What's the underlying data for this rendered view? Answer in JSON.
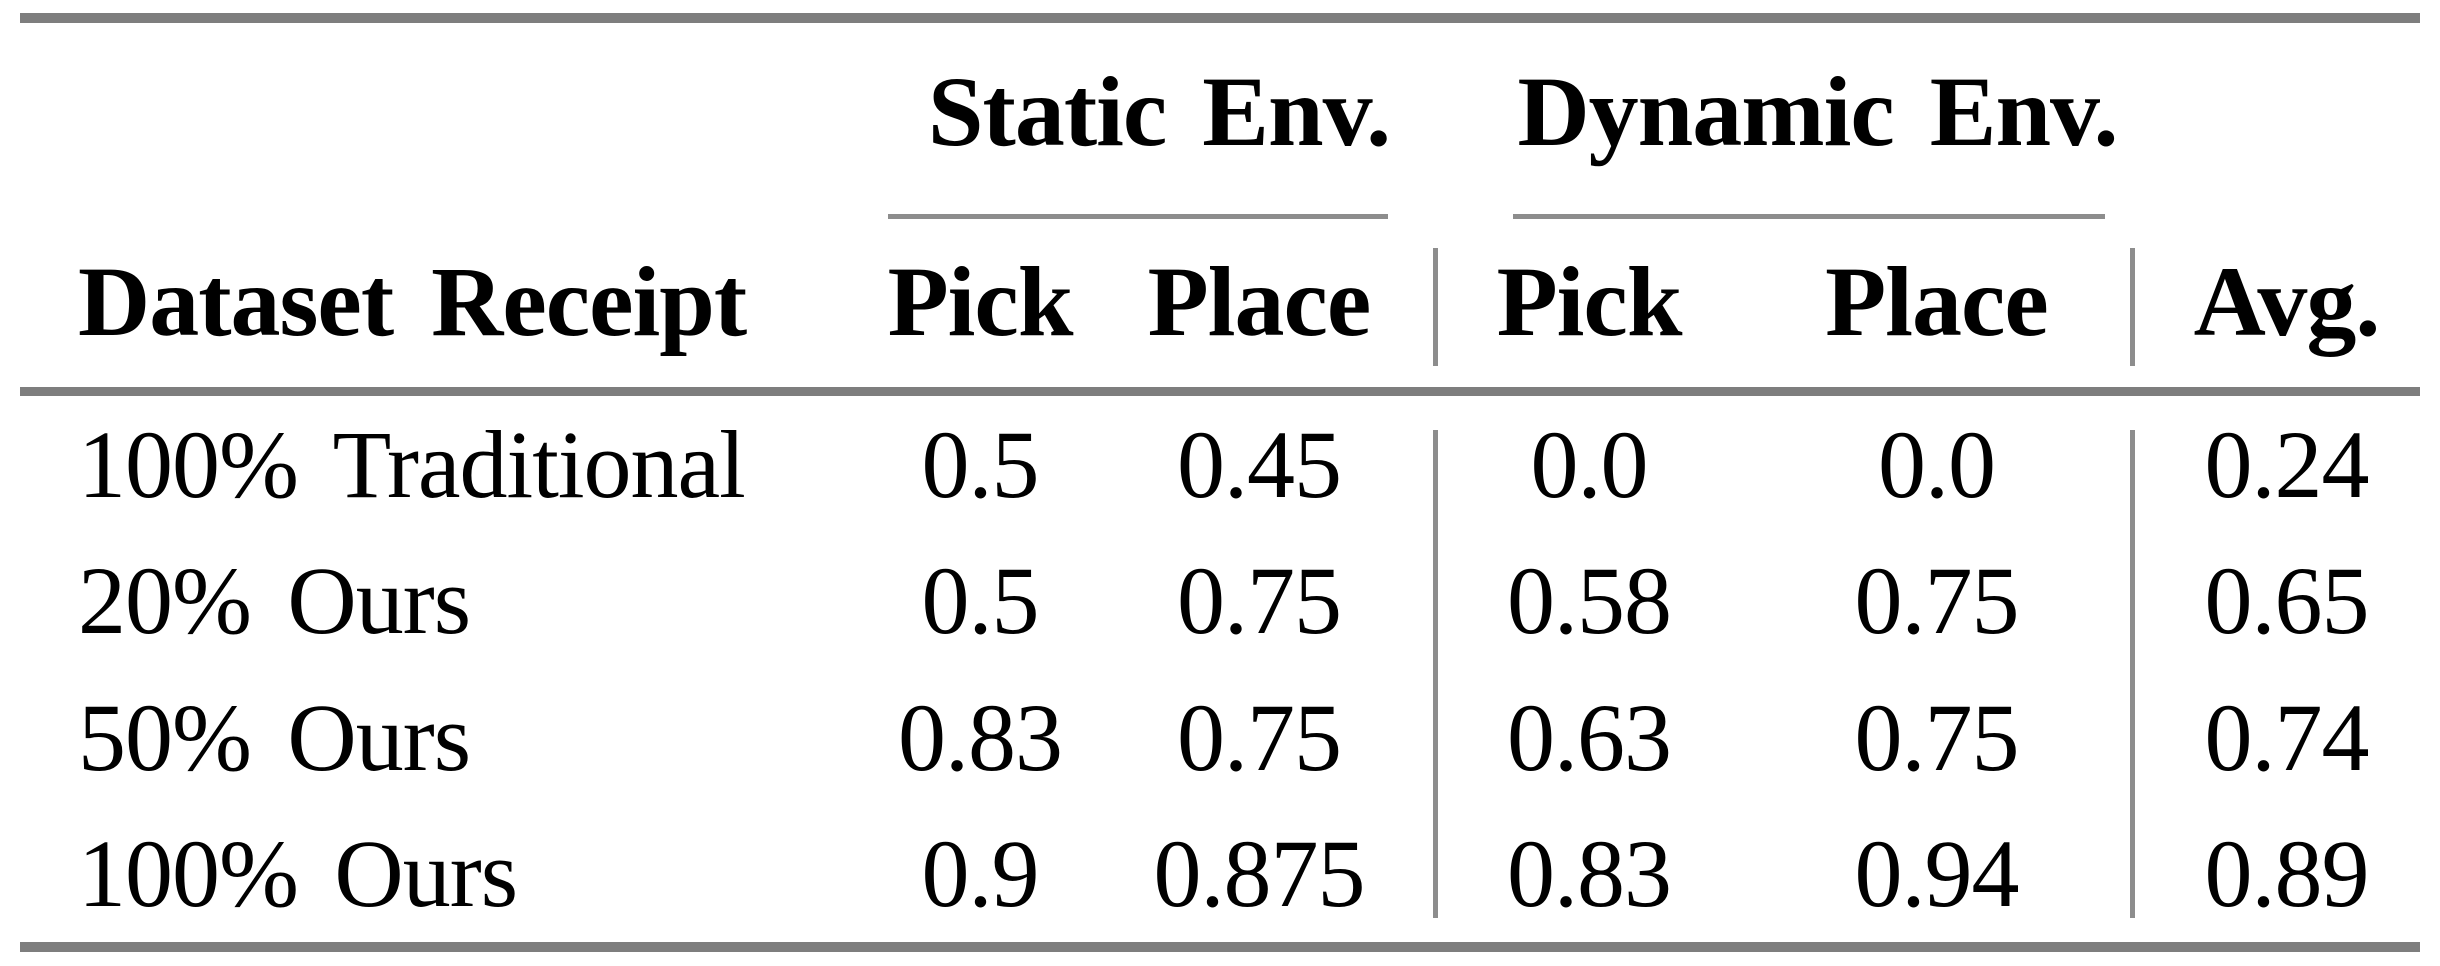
{
  "table": {
    "col_groups": [
      {
        "label": "Static Env."
      },
      {
        "label": "Dynamic Env."
      }
    ],
    "columns": {
      "dataset": "Dataset Receipt",
      "static_pick": "Pick",
      "static_place": "Place",
      "dynamic_pick": "Pick",
      "dynamic_place": "Place",
      "avg": "Avg."
    },
    "rows": [
      {
        "label": "100% Traditional",
        "static_pick": "0.5",
        "static_place": "0.45",
        "dynamic_pick": "0.0",
        "dynamic_place": "0.0",
        "avg": "0.24"
      },
      {
        "label": "20% Ours",
        "static_pick": "0.5",
        "static_place": "0.75",
        "dynamic_pick": "0.58",
        "dynamic_place": "0.75",
        "avg": "0.65"
      },
      {
        "label": "50% Ours",
        "static_pick": "0.83",
        "static_place": "0.75",
        "dynamic_pick": "0.63",
        "dynamic_place": "0.75",
        "avg": "0.74"
      },
      {
        "label": "100% Ours",
        "static_pick": "0.9",
        "static_place": "0.875",
        "dynamic_pick": "0.83",
        "dynamic_place": "0.94",
        "avg": "0.89"
      }
    ]
  },
  "colors": {
    "rule_heavy": "#7e7e7e",
    "rule_light": "#8d8d8d",
    "text": "#000000",
    "background": "#ffffff"
  },
  "chart_data": {
    "type": "table",
    "title": "",
    "column_groups": [
      "Static Env.",
      "Dynamic Env."
    ],
    "columns": [
      "Dataset Receipt",
      "Static Pick",
      "Static Place",
      "Dynamic Pick",
      "Dynamic Place",
      "Avg."
    ],
    "rows": [
      [
        "100% Traditional",
        0.5,
        0.45,
        0.0,
        0.0,
        0.24
      ],
      [
        "20% Ours",
        0.5,
        0.75,
        0.58,
        0.75,
        0.65
      ],
      [
        "50% Ours",
        0.83,
        0.75,
        0.63,
        0.75,
        0.74
      ],
      [
        "100% Ours",
        0.9,
        0.875,
        0.83,
        0.94,
        0.89
      ]
    ]
  }
}
